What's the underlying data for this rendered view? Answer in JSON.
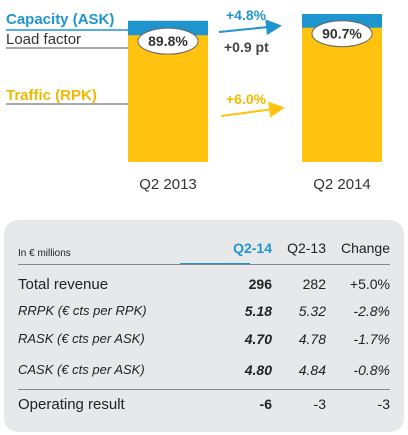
{
  "chart_data": {
    "type": "bar",
    "categories": [
      "Q2 2013",
      "Q2 2014"
    ],
    "series": [
      {
        "name": "Capacity (ASK)",
        "values": [
          100,
          104.8
        ],
        "color": "#1f95d0"
      },
      {
        "name": "Traffic (RPK)",
        "values": [
          89.8,
          95.1
        ],
        "color": "#ffc20e"
      }
    ],
    "load_factor_labels": [
      "89.8%",
      "90.7%"
    ],
    "legend": {
      "capacity": "Capacity (ASK)",
      "load_factor": "Load factor",
      "traffic": "Traffic (RPK)"
    },
    "annotations": {
      "capacity_change": "+4.8%",
      "load_factor_change": "+0.9 pt",
      "traffic_change": "+6.0%"
    },
    "title": "",
    "xlabel": "",
    "ylabel": "",
    "colors": {
      "capacity": "#1f95d0",
      "traffic": "#ffc20e",
      "text_blue": "#1f95d0",
      "text_yellow": "#f5b800"
    }
  },
  "table": {
    "unit_label": "In € millions",
    "columns": [
      "Q2-14",
      "Q2-13",
      "Change"
    ],
    "rows": [
      {
        "label": "Total revenue",
        "q214": "296",
        "q213": "282",
        "change": "+5.0%"
      },
      {
        "label": "RRPK (€ cts per RPK)",
        "q214": "5.18",
        "q213": "5.32",
        "change": "-2.8%"
      },
      {
        "label": "RASK (€ cts per ASK)",
        "q214": "4.70",
        "q213": "4.78",
        "change": "-1.7%"
      },
      {
        "label": "CASK (€ cts per ASK)",
        "q214": "4.80",
        "q213": "4.84",
        "change": "-0.8%"
      },
      {
        "label": "Operating result",
        "q214": "-6",
        "q213": "-3",
        "change": "-3"
      }
    ]
  }
}
